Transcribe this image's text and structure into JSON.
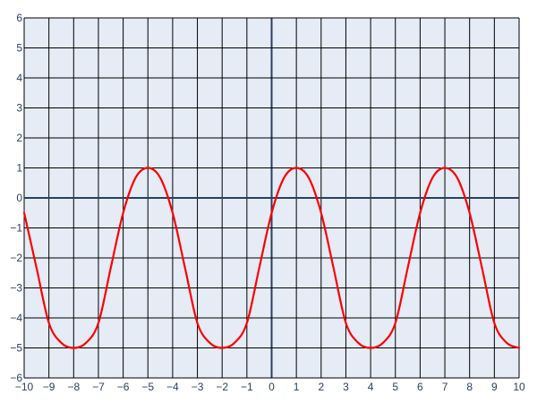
{
  "colors": {
    "plot_background": "#e5ecf6",
    "grid": "#000000",
    "zero_line": "#2a3f5f",
    "tick_label": "#2a3f5f",
    "curve": "#ff0000"
  },
  "chart_data": {
    "type": "line",
    "title": "",
    "xlabel": "",
    "ylabel": "",
    "xlim": [
      -10,
      10
    ],
    "ylim": [
      -6,
      6
    ],
    "grid": true,
    "x_ticks": [
      -10,
      -9,
      -8,
      -7,
      -6,
      -5,
      -4,
      -3,
      -2,
      -1,
      0,
      1,
      2,
      3,
      4,
      5,
      6,
      7,
      8,
      9,
      10
    ],
    "y_ticks": [
      -6,
      -5,
      -4,
      -3,
      -2,
      -1,
      0,
      1,
      2,
      3,
      4,
      5,
      6
    ],
    "x_tick_labels": [
      "−10",
      "−9",
      "−8",
      "−7",
      "−6",
      "−5",
      "−4",
      "−3",
      "−2",
      "−1",
      "0",
      "1",
      "2",
      "3",
      "4",
      "5",
      "6",
      "7",
      "8",
      "9",
      "10"
    ],
    "y_tick_labels": [
      "−6",
      "−5",
      "−4",
      "−3",
      "−2",
      "−1",
      "0",
      "1",
      "2",
      "3",
      "4",
      "5",
      "6"
    ],
    "series": [
      {
        "color": "#ff0000",
        "x": [
          -10,
          -9.5,
          -9,
          -8.5,
          -8,
          -7.5,
          -7,
          -6.5,
          -6,
          -5.5,
          -5,
          -4.5,
          -4,
          -3.5,
          -3,
          -2.5,
          -2,
          -1.5,
          -1,
          -0.5,
          0,
          0.5,
          1,
          1.5,
          2,
          2.5,
          3,
          3.5,
          4,
          4.5,
          5,
          5.5,
          6,
          6.5,
          7,
          7.5,
          8,
          8.5,
          9,
          9.5,
          10
        ],
        "y": [
          -0.5,
          -2.33,
          -4.17,
          -4.83,
          -5,
          -4.83,
          -4.17,
          -2.33,
          -0.5,
          0.67,
          1,
          0.67,
          -0.5,
          -2.33,
          -4.17,
          -4.83,
          -5,
          -4.83,
          -4.17,
          -2.33,
          -0.5,
          0.67,
          1,
          0.67,
          -0.5,
          -2.33,
          -4.17,
          -4.83,
          -5,
          -4.83,
          -4.17,
          -2.33,
          -0.5,
          0.67,
          1,
          0.67,
          -0.5,
          -2.33,
          -4.17,
          -4.83,
          -5
        ]
      }
    ]
  }
}
